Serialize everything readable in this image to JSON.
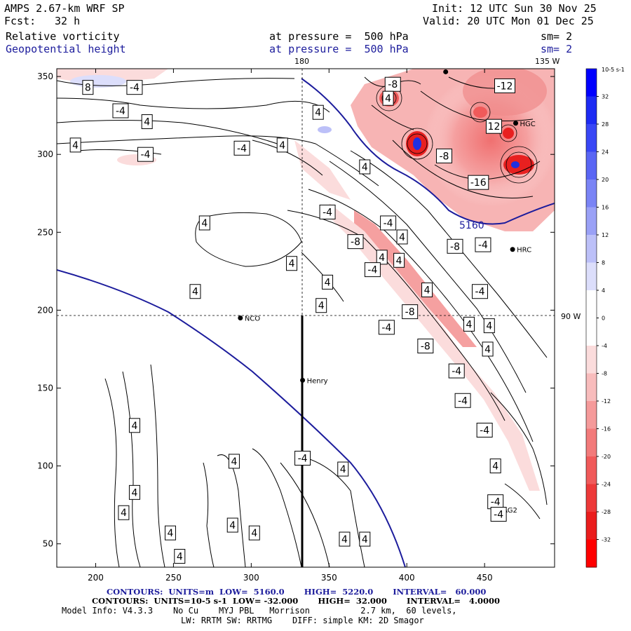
{
  "header": {
    "model": "AMPS 2.67-km WRF SP",
    "forecast_label": "Fcst:",
    "forecast_value": "32 h",
    "init": "Init: 12 UTC Sun 30 Nov 25",
    "valid": "Valid: 20 UTC Mon 01 Dec 25",
    "field1": "Relative vorticity",
    "field1_level": "at pressure =  500 hPa",
    "field1_smooth": "sm= 2",
    "field2": "Geopotential height",
    "field2_level": "at pressure =  500 hPa",
    "field2_smooth": "sm= 2",
    "colors": {
      "field1": "#000000",
      "field2": "#1c1c9c"
    }
  },
  "map": {
    "lon_labels": {
      "top_180": "180",
      "top_135w": "135 W",
      "right_90w": "90 W"
    },
    "stations": [
      {
        "name": "NCO",
        "x": 293,
        "y": 195
      },
      {
        "name": "Henry",
        "x": 333,
        "y": 155
      },
      {
        "name": "HRC",
        "x": 468,
        "y": 239
      },
      {
        "name": "AG2",
        "x": 459,
        "y": 72
      },
      {
        "name": "HGC",
        "x": 470,
        "y": 320
      },
      {
        "name": "",
        "x": 500,
        "y": 142
      },
      {
        "name": "",
        "x": 425,
        "y": 353
      }
    ],
    "height_contour_label": "5160",
    "contour_labels": [
      {
        "t": "8",
        "x": 195,
        "y": 343
      },
      {
        "t": "-4",
        "x": 225,
        "y": 343
      },
      {
        "t": "-8",
        "x": 391,
        "y": 345
      },
      {
        "t": "4",
        "x": 388,
        "y": 336
      },
      {
        "t": "-4",
        "x": 216,
        "y": 328
      },
      {
        "t": "4",
        "x": 343,
        "y": 327
      },
      {
        "t": "4",
        "x": 233,
        "y": 321
      },
      {
        "t": "-12",
        "x": 463,
        "y": 344
      },
      {
        "t": "4",
        "x": 187,
        "y": 306
      },
      {
        "t": "-4",
        "x": 232,
        "y": 300
      },
      {
        "t": "-4",
        "x": 294,
        "y": 304
      },
      {
        "t": "4",
        "x": 320,
        "y": 306
      },
      {
        "t": "-8",
        "x": 424,
        "y": 299
      },
      {
        "t": "12",
        "x": 456,
        "y": 318
      },
      {
        "t": "4",
        "x": 373,
        "y": 292
      },
      {
        "t": "-16",
        "x": 446,
        "y": 282
      },
      {
        "t": "-4",
        "x": 349,
        "y": 263
      },
      {
        "t": "-4",
        "x": 388,
        "y": 256
      },
      {
        "t": "4",
        "x": 270,
        "y": 256
      },
      {
        "t": "4",
        "x": 397,
        "y": 247
      },
      {
        "t": "-8",
        "x": 367,
        "y": 244
      },
      {
        "t": "-8",
        "x": 431,
        "y": 241
      },
      {
        "t": "-4",
        "x": 449,
        "y": 242
      },
      {
        "t": "4",
        "x": 384,
        "y": 234
      },
      {
        "t": "4",
        "x": 326,
        "y": 230
      },
      {
        "t": "4",
        "x": 395,
        "y": 232
      },
      {
        "t": "-4",
        "x": 378,
        "y": 226
      },
      {
        "t": "4",
        "x": 349,
        "y": 218
      },
      {
        "t": "4",
        "x": 413,
        "y": 213
      },
      {
        "t": "-4",
        "x": 447,
        "y": 212
      },
      {
        "t": "4",
        "x": 264,
        "y": 212
      },
      {
        "t": "4",
        "x": 345,
        "y": 203
      },
      {
        "t": "-8",
        "x": 402,
        "y": 199
      },
      {
        "t": "-4",
        "x": 387,
        "y": 189
      },
      {
        "t": "4",
        "x": 440,
        "y": 191
      },
      {
        "t": "4",
        "x": 453,
        "y": 190
      },
      {
        "t": "-8",
        "x": 412,
        "y": 177
      },
      {
        "t": "4",
        "x": 452,
        "y": 175
      },
      {
        "t": "-4",
        "x": 432,
        "y": 161
      },
      {
        "t": "-4",
        "x": 436,
        "y": 142
      },
      {
        "t": "4",
        "x": 225,
        "y": 126
      },
      {
        "t": "-4",
        "x": 450,
        "y": 123
      },
      {
        "t": "4",
        "x": 289,
        "y": 103
      },
      {
        "t": "-4",
        "x": 333,
        "y": 105
      },
      {
        "t": "4",
        "x": 457,
        "y": 100
      },
      {
        "t": "4",
        "x": 359,
        "y": 98
      },
      {
        "t": "4",
        "x": 225,
        "y": 83
      },
      {
        "t": "-4",
        "x": 457,
        "y": 77
      },
      {
        "t": "4",
        "x": 218,
        "y": 70
      },
      {
        "t": "4",
        "x": 288,
        "y": 62
      },
      {
        "t": "-4",
        "x": 459,
        "y": 69
      },
      {
        "t": "4",
        "x": 248,
        "y": 57
      },
      {
        "t": "4",
        "x": 302,
        "y": 57
      },
      {
        "t": "4",
        "x": 360,
        "y": 53
      },
      {
        "t": "4",
        "x": 373,
        "y": 53
      },
      {
        "t": "4",
        "x": 254,
        "y": 42
      }
    ]
  },
  "chart_data": {
    "type": "contour map",
    "title": "AMPS 2.67-km WRF SP — Relative vorticity and Geopotential height at 500 hPa",
    "xlabel": "",
    "ylabel": "",
    "xlim": [
      175,
      495
    ],
    "ylim": [
      35,
      355
    ],
    "x_ticks": [
      200,
      250,
      300,
      350,
      400,
      450
    ],
    "y_ticks": [
      50,
      100,
      150,
      200,
      250,
      300,
      350
    ],
    "colorbar": {
      "units": "10-5 s-1",
      "ticks": [
        32,
        28,
        24,
        20,
        16,
        12,
        8,
        4,
        0,
        -4,
        -8,
        -12,
        -16,
        -20,
        -24,
        -28,
        -32
      ],
      "colors": [
        "#0000ff",
        "#1d2bf3",
        "#3947f5",
        "#5a66f4",
        "#7a84f5",
        "#9aa1f6",
        "#bcc0f8",
        "#dcdefb",
        "#ffffff",
        "#ffffff",
        "#fbdcdc",
        "#f8bcbc",
        "#f59a9a",
        "#f27a7a",
        "#f05a5a",
        "#ed3939",
        "#ea1d1d",
        "#ff0000"
      ]
    },
    "series": [
      {
        "name": "Geopotential height 500 hPa",
        "units": "m",
        "low": 5160.0,
        "high": 5220.0,
        "interval": 60.0
      },
      {
        "name": "Relative vorticity 500 hPa",
        "units": "10-5 s-1",
        "low": -32.0,
        "high": 32.0,
        "interval": 4.0
      }
    ]
  },
  "footer": {
    "line1": "CONTOURS:  UNITS=m  LOW=  5160.0       HIGH=  5220.0       INTERVAL=   60.000",
    "line2": "CONTOURS:  UNITS=10-5 s-1  LOW= -32.000       HIGH=  32.000       INTERVAL=   4.0000",
    "line3": "Model Info: V4.3.3    No Cu    MYJ PBL   Morrison          2.7 km,  60 levels,",
    "line4": "LW: RRTM SW: RRTMG    DIFF: simple KM: 2D Smagor"
  }
}
